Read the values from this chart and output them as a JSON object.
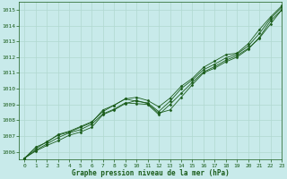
{
  "bg_color": "#c8eaea",
  "grid_color": "#b0d8d0",
  "line_color": "#1a5c1a",
  "text_color": "#1a5c1a",
  "xlabel": "Graphe pression niveau de la mer (hPa)",
  "ylim": [
    1005.5,
    1015.5
  ],
  "xlim": [
    -0.5,
    23
  ],
  "yticks": [
    1006,
    1007,
    1008,
    1009,
    1010,
    1011,
    1012,
    1013,
    1014,
    1015
  ],
  "xticks": [
    0,
    1,
    2,
    3,
    4,
    5,
    6,
    7,
    8,
    9,
    10,
    11,
    12,
    13,
    14,
    15,
    16,
    17,
    18,
    19,
    20,
    21,
    22,
    23
  ],
  "series": [
    [
      1005.6,
      1006.05,
      1006.4,
      1006.7,
      1007.05,
      1007.25,
      1007.55,
      1008.35,
      1008.65,
      1009.05,
      1009.25,
      1009.05,
      1008.45,
      1008.65,
      1009.45,
      1010.25,
      1011.0,
      1011.3,
      1011.7,
      1012.0,
      1012.5,
      1013.25,
      1014.3,
      1015.0
    ],
    [
      1005.6,
      1006.1,
      1006.5,
      1006.9,
      1007.2,
      1007.4,
      1007.75,
      1008.4,
      1008.7,
      1009.1,
      1009.05,
      1009.0,
      1008.35,
      1009.0,
      1009.7,
      1010.4,
      1011.05,
      1011.4,
      1011.8,
      1012.1,
      1012.55,
      1013.2,
      1014.1,
      1015.0
    ],
    [
      1005.6,
      1006.3,
      1006.6,
      1007.1,
      1007.3,
      1007.6,
      1007.9,
      1008.55,
      1008.95,
      1009.35,
      1009.2,
      1009.1,
      1008.55,
      1009.2,
      1010.0,
      1010.55,
      1011.2,
      1011.55,
      1011.95,
      1012.2,
      1012.7,
      1013.5,
      1014.45,
      1015.15
    ],
    [
      1005.6,
      1006.2,
      1006.65,
      1007.05,
      1007.25,
      1007.55,
      1007.85,
      1008.65,
      1008.95,
      1009.35,
      1009.45,
      1009.25,
      1008.85,
      1009.4,
      1010.15,
      1010.65,
      1011.35,
      1011.75,
      1012.15,
      1012.25,
      1012.85,
      1013.75,
      1014.55,
      1015.25
    ]
  ]
}
